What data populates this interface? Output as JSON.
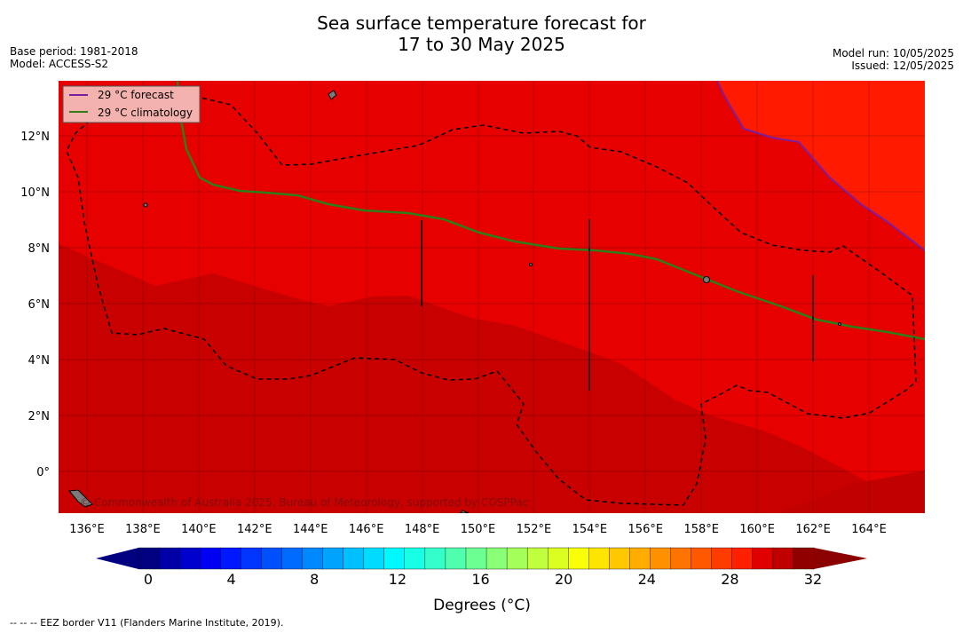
{
  "header": {
    "title_line1": "Sea surface temperature forecast for",
    "title_line2": "17 to 30 May 2025",
    "base_period": "Base period: 1981-2018",
    "model": "Model: ACCESS-S2",
    "model_run": "Model run: 10/05/2025",
    "issued": "Issued: 12/05/2025"
  },
  "map": {
    "lon_labels": [
      "136°E",
      "138°E",
      "140°E",
      "142°E",
      "144°E",
      "146°E",
      "148°E",
      "150°E",
      "152°E",
      "154°E",
      "156°E",
      "158°E",
      "160°E",
      "162°E",
      "164°E"
    ],
    "lat_labels": [
      "12°N",
      "10°N",
      "8°N",
      "6°N",
      "4°N",
      "2°N",
      "0°"
    ],
    "legend": {
      "forecast_label": "29 °C  forecast",
      "climatology_label": "29 °C  climatology",
      "forecast_color": "#7b1fa2",
      "climatology_color": "#2e7d1a"
    },
    "credit": "© Commonwealth of Australia 2025, Bureau of Meteorology, supported by COSPPac",
    "zone_colors": {
      "above_29": "#ff1a00",
      "from_28_to_29": "#e60000",
      "from_27_to_28": "#c80000",
      "from_26_to_27": "#c10000"
    }
  },
  "colorbar": {
    "tick_labels": [
      "0",
      "4",
      "8",
      "12",
      "16",
      "20",
      "24",
      "28",
      "32"
    ],
    "label": "Degrees (°C)",
    "colors": [
      "#000080",
      "#0000a6",
      "#0000cc",
      "#0000f2",
      "#0018ff",
      "#0034ff",
      "#0050ff",
      "#006cff",
      "#0088ff",
      "#00a4ff",
      "#00c0ff",
      "#00dcff",
      "#00f8ff",
      "#18ffe6",
      "#34ffca",
      "#50ffae",
      "#6cff92",
      "#88ff76",
      "#a4ff5a",
      "#c0ff3e",
      "#dcff22",
      "#f8ff06",
      "#ffe400",
      "#ffc800",
      "#ffac00",
      "#ff9000",
      "#ff7400",
      "#ff5800",
      "#ff3c00",
      "#ff2000",
      "#e00000",
      "#c00000",
      "#900000"
    ],
    "under_color": "#000080",
    "over_color": "#8b0000"
  },
  "footnote": "--  --  -- EEZ border V11 (Flanders Marine Institute, 2019)."
}
